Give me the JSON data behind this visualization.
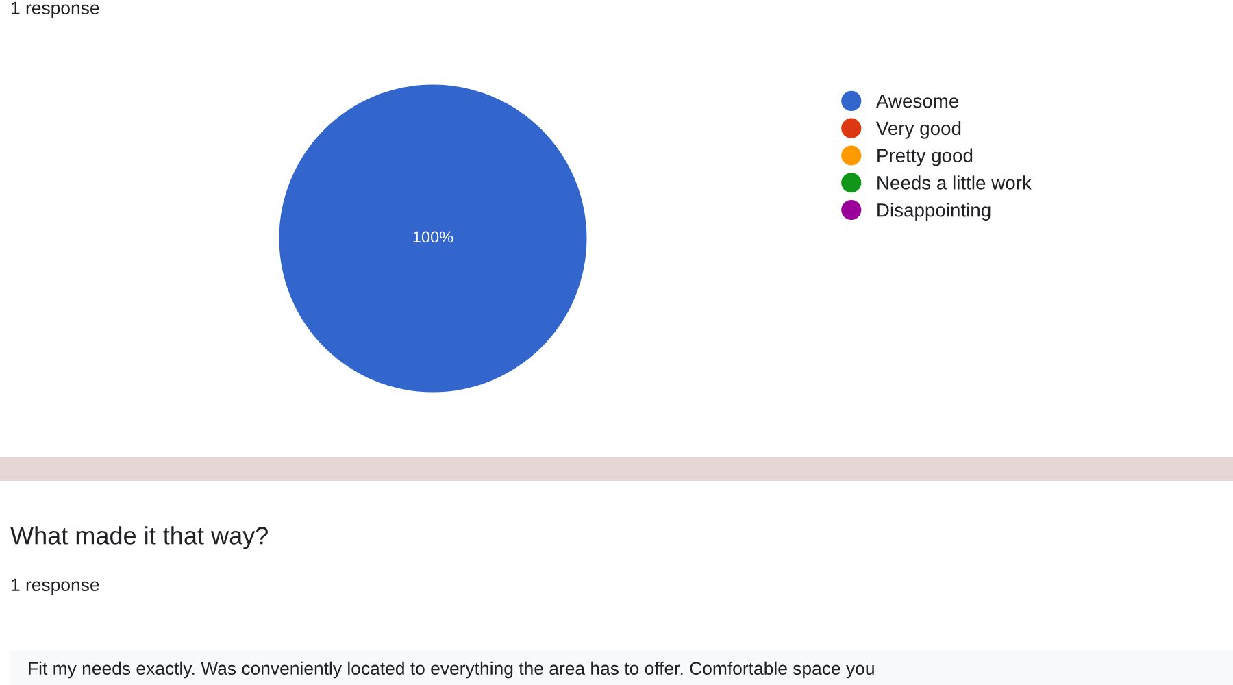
{
  "chart_data": {
    "type": "pie",
    "categories": [
      "Awesome",
      "Very good",
      "Pretty good",
      "Needs a little work",
      "Disappointing"
    ],
    "values": [
      100,
      0,
      0,
      0,
      0
    ],
    "colors": [
      "#3366cc",
      "#dc3912",
      "#ff9900",
      "#109618",
      "#990099"
    ],
    "value_labels": [
      "100%",
      null,
      null,
      null,
      null
    ],
    "legend": "right",
    "annotations": [
      "1 response",
      "What made it that way?",
      "1 response",
      "Fit my needs exactly. Was conveniently located to everything the area has to offer. Comfortable space you"
    ]
  }
}
